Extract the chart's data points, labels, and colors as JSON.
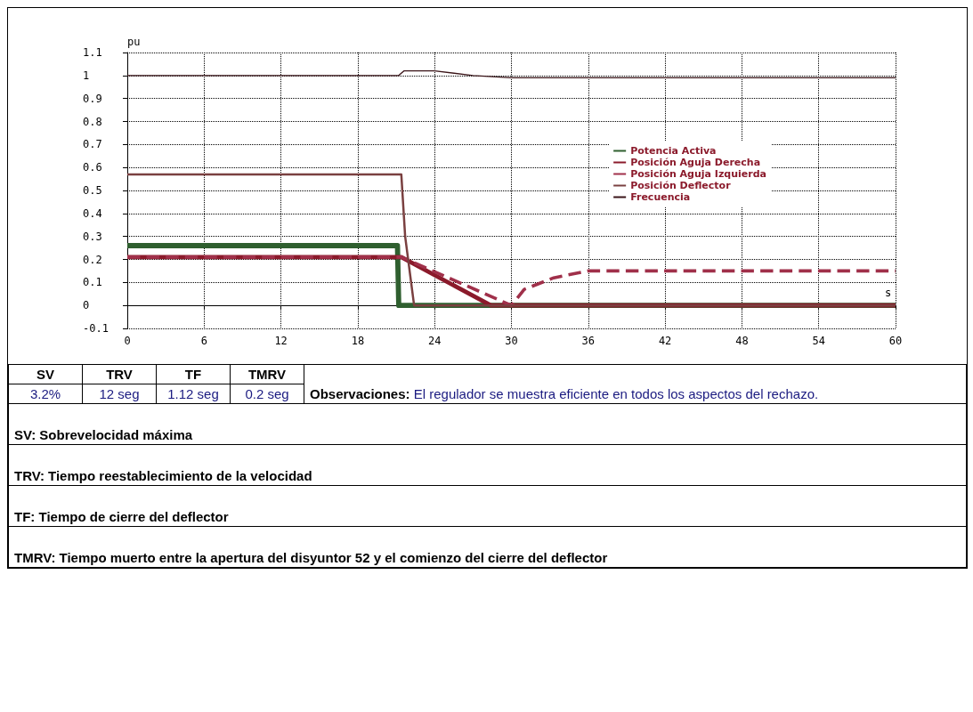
{
  "chart_data": {
    "type": "line",
    "xlabel": "s",
    "ylabel": "pu",
    "xlim": [
      0,
      60
    ],
    "xticks": [
      0,
      6,
      12,
      18,
      24,
      30,
      36,
      42,
      48,
      54,
      60
    ],
    "ylim": [
      -0.1,
      1.1
    ],
    "yticks": [
      -0.1,
      0,
      0.1,
      0.2,
      0.3,
      0.4,
      0.5,
      0.6,
      0.7,
      0.8,
      0.9,
      1,
      1.1
    ],
    "grid": true,
    "legend": "right",
    "marker": "none",
    "series": [
      {
        "name": "Potencia Activa",
        "color": "#2f5f2f",
        "line_style": "solid",
        "x": [
          0,
          21.1,
          21.2,
          60
        ],
        "values": [
          0.26,
          0.26,
          0,
          0
        ]
      },
      {
        "name": "Posición Aguja Derecha",
        "color": "#8b1a2b",
        "line_style": "solid",
        "x": [
          0,
          21.4,
          28.4,
          60
        ],
        "values": [
          0.21,
          0.21,
          0,
          0
        ]
      },
      {
        "name": "Posición Aguja Izquierda",
        "color": "#a0304a",
        "line_style": "dashed",
        "x": [
          0,
          21.4,
          30,
          31,
          33.3,
          36,
          60
        ],
        "values": [
          0.21,
          0.21,
          0,
          0.07,
          0.12,
          0.15,
          0.15
        ]
      },
      {
        "name": "Posición Deflector",
        "color": "#7a4040",
        "line_style": "solid",
        "x": [
          0,
          21.4,
          21.7,
          22.4,
          60
        ],
        "values": [
          0.57,
          0.57,
          0.3,
          0,
          0
        ]
      },
      {
        "name": "Frecuencia",
        "color": "#3a1418",
        "line_style": "solid",
        "x": [
          0,
          21.2,
          21.6,
          24,
          27,
          30,
          60
        ],
        "values": [
          1,
          1,
          1.02,
          1.02,
          1,
          0.99,
          0.99
        ]
      }
    ],
    "annotations": [
      "SV",
      "TRV",
      "TF",
      "TMRV",
      "3.2%",
      "12 seg",
      "1.12 seg",
      "0.2 seg",
      "Observaciones:",
      "El regulador se muestra eficiente en todos los aspectos del rechazo.",
      "SV: Sobrevelocidad máxima",
      "TRV: Tiempo reestablecimiento de la velocidad",
      "TF: Tiempo de cierre del deflector",
      "TMRV: Tiempo muerto entre la apertura del disyuntor 52 y el comienzo del cierre del deflector"
    ]
  }
}
